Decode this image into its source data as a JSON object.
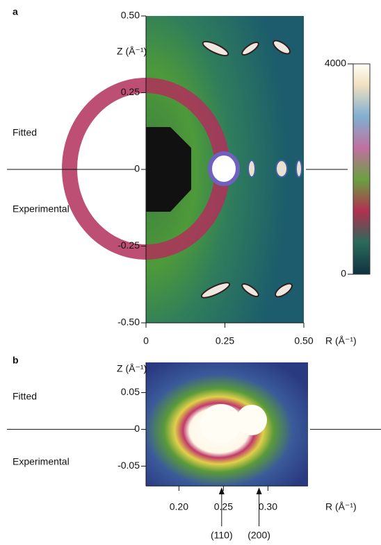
{
  "chart_data": [
    {
      "type": "heatmap",
      "panel": "a",
      "xlabel": "R (Å⁻¹)",
      "ylabel": "Z (Å⁻¹)",
      "xlim": [
        0,
        0.5
      ],
      "ylim": [
        -0.5,
        0.5
      ],
      "xticks": [
        0,
        0.25,
        {
          "value": 0.5,
          "label": "0.50"
        }
      ],
      "yticks": [
        {
          "value": 0.5,
          "label": "0.50"
        },
        0.25,
        0,
        -0.25,
        {
          "value": -0.5,
          "label": "-0.50"
        }
      ],
      "upper_label": "Fitted",
      "lower_label": "Experimental",
      "colorbar": {
        "lim": [
          0,
          4000
        ],
        "ticks": [
          4000,
          0
        ]
      }
    },
    {
      "type": "heatmap",
      "panel": "b",
      "xlabel": "R (Å⁻¹)",
      "ylabel": "Z (Å⁻¹)",
      "xlim": [
        0.163,
        0.345
      ],
      "ylim": [
        -0.077,
        0.091
      ],
      "xticks": [
        {
          "value": 0.2,
          "label": "0.20"
        },
        0.25,
        {
          "value": 0.3,
          "label": "0.30"
        }
      ],
      "yticks": [
        0.05,
        0,
        -0.05
      ],
      "upper_label": "Fitted",
      "lower_label": "Experimental",
      "annotations": [
        {
          "text": "(110)",
          "x": 0.248
        },
        {
          "text": "(200)",
          "x": 0.29
        }
      ]
    }
  ]
}
